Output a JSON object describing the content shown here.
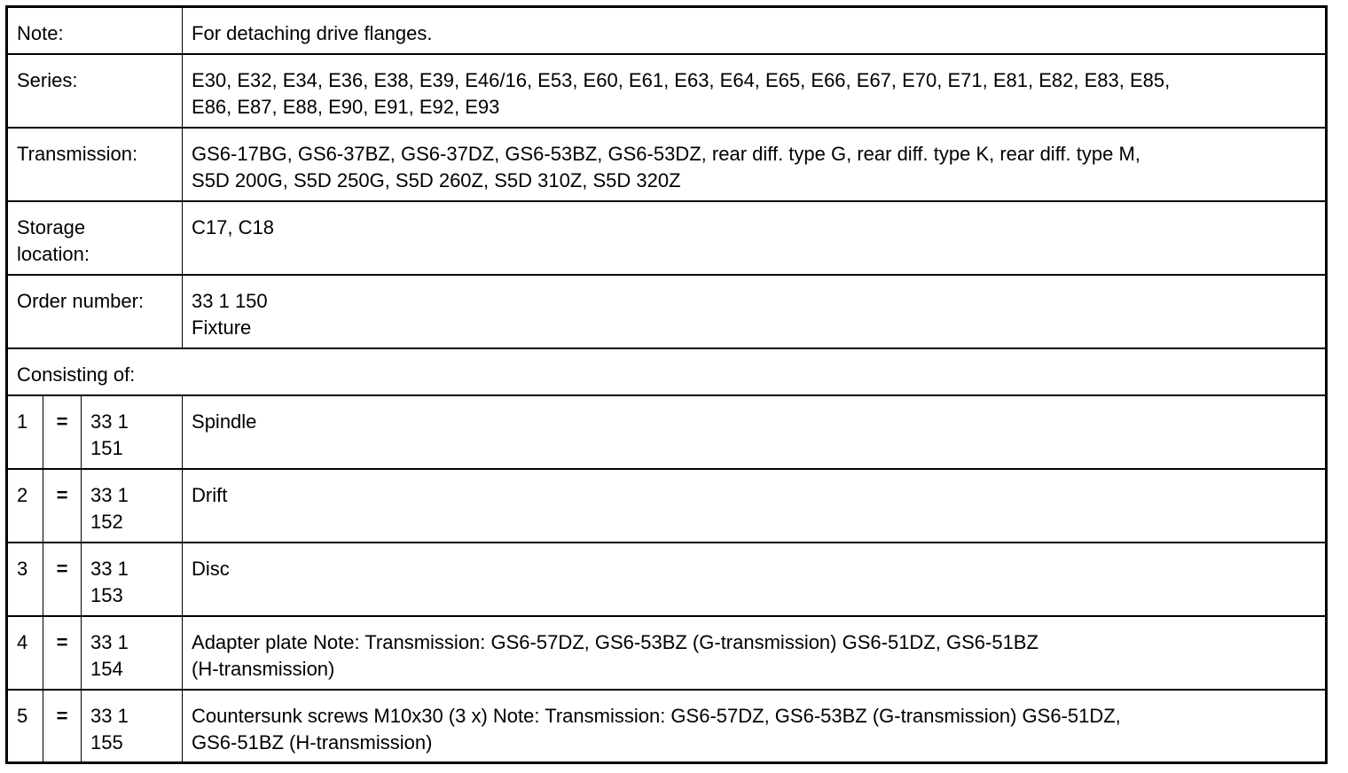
{
  "rows": [
    {
      "label": "Note:",
      "value": "For detaching drive flanges."
    },
    {
      "label": "Series:",
      "value": "E30, E32, E34, E36, E38, E39, E46/16, E53, E60, E61, E63, E64, E65, E66, E67, E70, E71, E81, E82, E83, E85,\nE86, E87, E88, E90, E91, E92, E93"
    },
    {
      "label": "Transmission:",
      "value": "GS6-17BG, GS6-37BZ, GS6-37DZ, GS6-53BZ, GS6-53DZ, rear diff. type G, rear diff. type K, rear diff. type M,\nS5D 200G, S5D 250G, S5D 260Z, S5D 310Z, S5D 320Z"
    },
    {
      "label": "Storage\nlocation:",
      "value": "C17, C18"
    },
    {
      "label": "Order number:",
      "value": "33 1 150\nFixture"
    }
  ],
  "consisting_label": "Consisting of:",
  "parts": [
    {
      "num": "1",
      "eq": "=",
      "part": "33 1\n151",
      "desc": "Spindle"
    },
    {
      "num": "2",
      "eq": "=",
      "part": "33 1\n152",
      "desc": "Drift"
    },
    {
      "num": "3",
      "eq": "=",
      "part": "33 1\n153",
      "desc": "Disc"
    },
    {
      "num": "4",
      "eq": "=",
      "part": "33 1\n154",
      "desc": "Adapter plate Note: Transmission: GS6-57DZ, GS6-53BZ (G-transmission) GS6-51DZ, GS6-51BZ\n(H-transmission)"
    },
    {
      "num": "5",
      "eq": "=",
      "part": "33 1\n155",
      "desc": "Countersunk screws M10x30 (3 x) Note: Transmission: GS6-57DZ, GS6-53BZ (G-transmission) GS6-51DZ,\nGS6-51BZ (H-transmission)"
    }
  ]
}
